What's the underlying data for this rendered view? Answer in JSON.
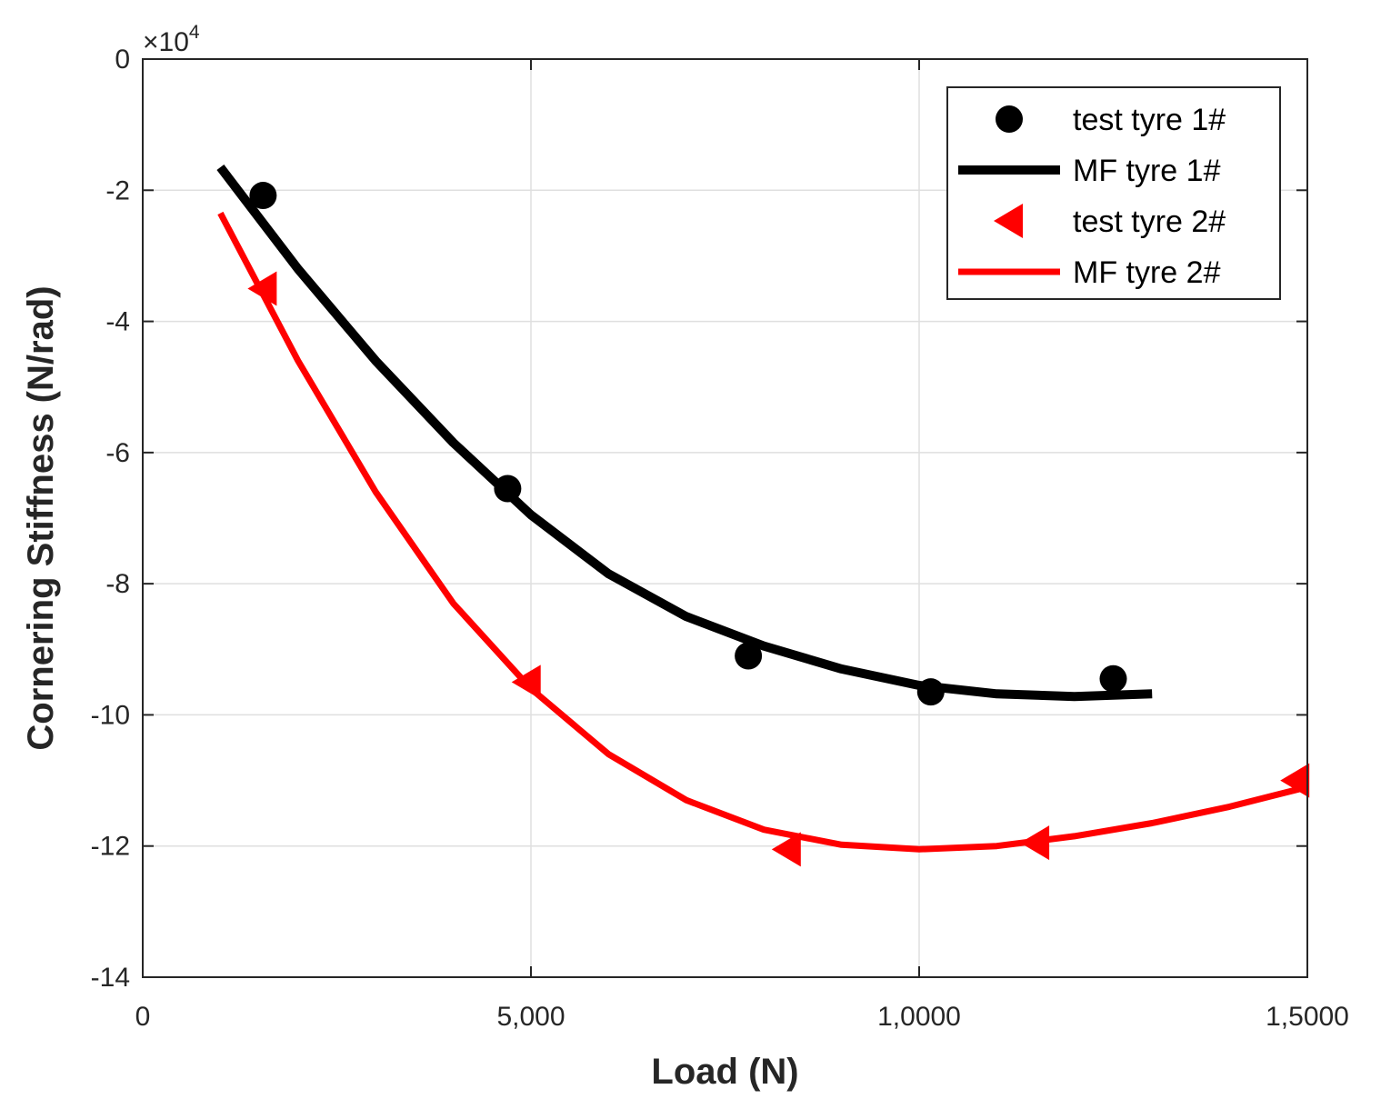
{
  "chart_data": {
    "type": "line",
    "title": "",
    "xlabel": "Load (N)",
    "ylabel": "Cornering Stiffness (N/rad)",
    "xlim": [
      0,
      15000
    ],
    "ylim": [
      -14,
      0
    ],
    "y_scale_base": "×10",
    "y_scale_exponent": "4",
    "x_ticks": [
      0,
      5000,
      10000,
      15000
    ],
    "x_tick_labels": [
      "0",
      "5,000",
      "1,0000",
      "1,5000"
    ],
    "y_ticks": [
      0,
      -2,
      -4,
      -6,
      -8,
      -10,
      -12,
      -14
    ],
    "y_tick_labels": [
      "0",
      "-2",
      "-4",
      "-6",
      "-8",
      "-10",
      "-12",
      "-14"
    ],
    "grid": true,
    "legend_position": "top-right",
    "series": [
      {
        "name": "test tyre 1#",
        "kind": "markers",
        "marker": "circle",
        "color": "#000000",
        "x": [
          1550,
          4700,
          7800,
          10150,
          12500
        ],
        "y": [
          -2.08,
          -6.55,
          -9.1,
          -9.65,
          -9.45
        ]
      },
      {
        "name": "MF tyre 1#",
        "kind": "line",
        "color": "#000000",
        "x": [
          1000,
          2000,
          3000,
          4000,
          5000,
          6000,
          7000,
          8000,
          9000,
          10000,
          11000,
          12000,
          13000
        ],
        "y": [
          -1.65,
          -3.2,
          -4.6,
          -5.85,
          -6.95,
          -7.85,
          -8.5,
          -8.95,
          -9.3,
          -9.55,
          -9.68,
          -9.72,
          -9.68
        ]
      },
      {
        "name": "test tyre 2#",
        "kind": "markers",
        "marker": "triangle-left",
        "color": "#ff0000",
        "x": [
          1550,
          4950,
          8300,
          11500,
          14850
        ],
        "y": [
          -3.5,
          -9.5,
          -12.05,
          -11.95,
          -11.0
        ]
      },
      {
        "name": "MF tyre 2#",
        "kind": "line",
        "color": "#ff0000",
        "x": [
          1000,
          2000,
          3000,
          4000,
          5000,
          6000,
          7000,
          8000,
          9000,
          10000,
          11000,
          12000,
          13000,
          14000,
          15000
        ],
        "y": [
          -2.35,
          -4.6,
          -6.6,
          -8.3,
          -9.6,
          -10.6,
          -11.3,
          -11.75,
          -11.98,
          -12.05,
          -12.0,
          -11.85,
          -11.65,
          -11.4,
          -11.1
        ]
      }
    ]
  }
}
